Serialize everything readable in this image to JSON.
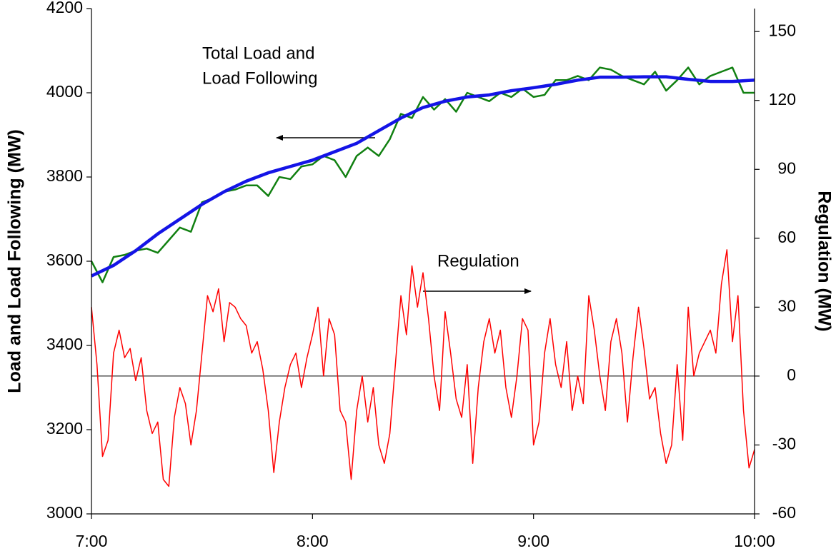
{
  "chart_data": {
    "type": "line",
    "ylabel": "Load and Load Following (MW)",
    "y2label": "Regulation (MW)",
    "xlim": [
      7,
      10
    ],
    "xticks": [
      {
        "value": 7,
        "label": "7:00"
      },
      {
        "value": 8,
        "label": "8:00"
      },
      {
        "value": 9,
        "label": "9:00"
      },
      {
        "value": 10,
        "label": "10:00"
      }
    ],
    "ylim": [
      3000,
      4200
    ],
    "yticks": [
      3000,
      3200,
      3400,
      3600,
      3800,
      4000,
      4200
    ],
    "y2lim": [
      -60,
      160
    ],
    "y2ticks": [
      -60,
      -30,
      0,
      30,
      60,
      90,
      120,
      150
    ],
    "hline_y2": 0,
    "grid": false,
    "annotations": [
      {
        "lines": [
          "Total Load and",
          "Load Following"
        ]
      },
      {
        "lines": [
          "Regulation"
        ]
      }
    ],
    "series": [
      {
        "color": "#ff0000",
        "width": 1.5,
        "axis": "y2",
        "x": [
          7,
          7.025,
          7.05,
          7.075,
          7.1,
          7.125,
          7.15,
          7.175,
          7.2,
          7.225,
          7.25,
          7.275,
          7.3,
          7.325,
          7.35,
          7.375,
          7.4,
          7.425,
          7.45,
          7.475,
          7.5,
          7.525,
          7.55,
          7.575,
          7.6,
          7.625,
          7.65,
          7.675,
          7.7,
          7.725,
          7.75,
          7.775,
          7.8,
          7.825,
          7.85,
          7.875,
          7.9,
          7.925,
          7.95,
          7.975,
          8,
          8.025,
          8.05,
          8.075,
          8.1,
          8.125,
          8.15,
          8.175,
          8.2,
          8.225,
          8.25,
          8.275,
          8.3,
          8.325,
          8.35,
          8.375,
          8.4,
          8.425,
          8.45,
          8.475,
          8.5,
          8.525,
          8.55,
          8.575,
          8.6,
          8.625,
          8.65,
          8.675,
          8.7,
          8.725,
          8.75,
          8.775,
          8.8,
          8.825,
          8.85,
          8.875,
          8.9,
          8.925,
          8.95,
          8.975,
          9,
          9.025,
          9.05,
          9.075,
          9.1,
          9.125,
          9.15,
          9.175,
          9.2,
          9.225,
          9.25,
          9.275,
          9.3,
          9.325,
          9.35,
          9.375,
          9.4,
          9.425,
          9.45,
          9.475,
          9.5,
          9.525,
          9.55,
          9.575,
          9.6,
          9.625,
          9.65,
          9.675,
          9.7,
          9.725,
          9.75,
          9.775,
          9.8,
          9.825,
          9.85,
          9.875,
          9.9,
          9.925,
          9.95,
          9.975,
          10
        ],
        "values": [
          30,
          5,
          -35,
          -28,
          10,
          20,
          8,
          12,
          -2,
          8,
          -15,
          -25,
          -20,
          -45,
          -48,
          -18,
          -5,
          -12,
          -30,
          -15,
          10,
          35,
          28,
          38,
          15,
          32,
          30,
          25,
          22,
          10,
          15,
          3,
          -15,
          -42,
          -20,
          -5,
          5,
          10,
          -5,
          8,
          18,
          30,
          0,
          25,
          18,
          -15,
          -20,
          -45,
          -15,
          0,
          -20,
          -5,
          -30,
          -38,
          -25,
          5,
          35,
          18,
          48,
          30,
          45,
          25,
          0,
          -15,
          28,
          10,
          -10,
          -18,
          5,
          -38,
          -5,
          15,
          25,
          10,
          20,
          -5,
          -18,
          0,
          25,
          20,
          -30,
          -20,
          10,
          25,
          5,
          -5,
          15,
          -15,
          0,
          -12,
          35,
          20,
          0,
          -15,
          15,
          25,
          10,
          -20,
          8,
          30,
          12,
          -10,
          -5,
          -25,
          -38,
          -30,
          5,
          -28,
          30,
          0,
          10,
          15,
          20,
          10,
          40,
          55,
          15,
          35,
          -15,
          -40,
          -32
        ]
      },
      {
        "color": "#118011",
        "width": 2.5,
        "axis": "y",
        "x": [
          7,
          7.05,
          7.1,
          7.15,
          7.2,
          7.25,
          7.3,
          7.35,
          7.4,
          7.45,
          7.5,
          7.55,
          7.6,
          7.65,
          7.7,
          7.75,
          7.8,
          7.85,
          7.9,
          7.95,
          8,
          8.05,
          8.1,
          8.15,
          8.2,
          8.25,
          8.3,
          8.35,
          8.4,
          8.45,
          8.5,
          8.55,
          8.6,
          8.65,
          8.7,
          8.75,
          8.8,
          8.85,
          8.9,
          8.95,
          9,
          9.05,
          9.1,
          9.15,
          9.2,
          9.25,
          9.3,
          9.35,
          9.4,
          9.45,
          9.5,
          9.55,
          9.6,
          9.65,
          9.7,
          9.75,
          9.8,
          9.85,
          9.9,
          9.95,
          10
        ],
        "values": [
          3600,
          3550,
          3610,
          3615,
          3625,
          3630,
          3620,
          3650,
          3680,
          3670,
          3740,
          3750,
          3765,
          3770,
          3780,
          3780,
          3755,
          3800,
          3795,
          3825,
          3830,
          3850,
          3840,
          3800,
          3850,
          3870,
          3850,
          3890,
          3950,
          3940,
          3990,
          3960,
          3985,
          3955,
          4000,
          3990,
          3980,
          4000,
          3990,
          4010,
          3990,
          3995,
          4030,
          4030,
          4040,
          4030,
          4060,
          4055,
          4040,
          4030,
          4020,
          4050,
          4005,
          4030,
          4060,
          4020,
          4040,
          4050,
          4060,
          4000,
          4000
        ]
      },
      {
        "color": "#1414e6",
        "width": 4.5,
        "axis": "y",
        "x": [
          7,
          7.1,
          7.2,
          7.3,
          7.4,
          7.5,
          7.6,
          7.7,
          7.8,
          7.9,
          8,
          8.1,
          8.2,
          8.3,
          8.4,
          8.5,
          8.6,
          8.7,
          8.8,
          8.9,
          9,
          9.1,
          9.2,
          9.3,
          9.4,
          9.5,
          9.6,
          9.7,
          9.8,
          9.9,
          10
        ],
        "values": [
          3565,
          3590,
          3625,
          3665,
          3700,
          3735,
          3765,
          3790,
          3810,
          3825,
          3840,
          3860,
          3880,
          3910,
          3940,
          3965,
          3980,
          3990,
          3995,
          4005,
          4012,
          4020,
          4030,
          4037,
          4037,
          4038,
          4038,
          4032,
          4027,
          4027,
          4030
        ]
      }
    ]
  }
}
